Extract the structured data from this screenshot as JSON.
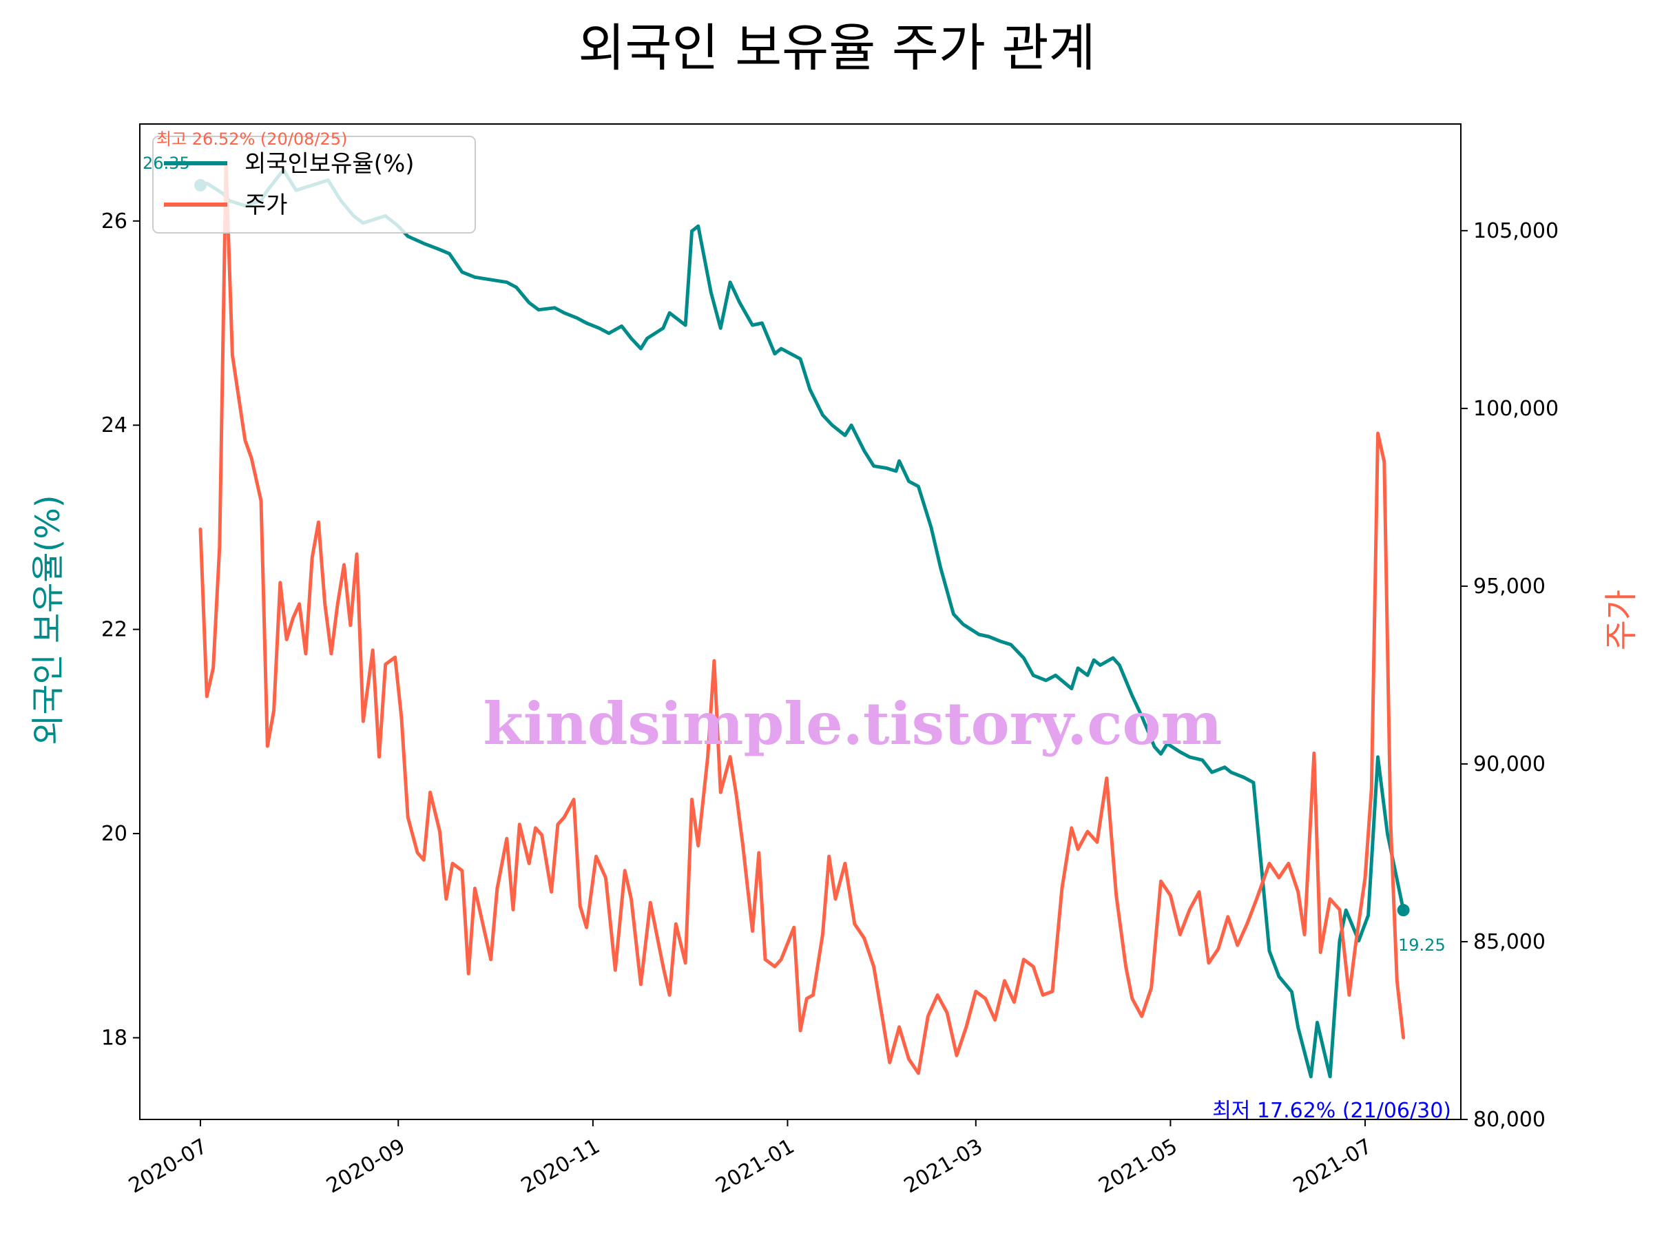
{
  "chart_data": {
    "type": "line",
    "title": "외국인 보유율 주가 관계",
    "ylabel_left": "외국인 보유율(%)",
    "ylabel_right": "주가",
    "x_tick_labels": [
      "2020-07",
      "2020-09",
      "2020-11",
      "2021-01",
      "2021-03",
      "2021-05",
      "2021-07"
    ],
    "left_y_ticks": [
      "18",
      "20",
      "22",
      "24",
      "26"
    ],
    "right_y_ticks": [
      "80,000",
      "85,000",
      "90,000",
      "95,000",
      "100,000",
      "105,000"
    ],
    "left_ylim": [
      17.2,
      26.95
    ],
    "right_ylim": [
      80000,
      108000
    ],
    "x_range": [
      "2020-06-12",
      "2021-07-31"
    ],
    "grid": false,
    "legend_position": "upper-left",
    "colors": {
      "foreign": "#008b8b",
      "price": "#ff6347",
      "low_annotation": "#0000ff",
      "watermark": "#e3a3ef"
    },
    "series": [
      {
        "name": "외국인보유율(%)",
        "axis": "left",
        "points": [
          [
            "2020-07-01",
            26.35
          ],
          [
            "2020-07-03",
            26.37
          ],
          [
            "2020-07-08",
            26.27
          ],
          [
            "2020-07-10",
            26.2
          ],
          [
            "2020-07-15",
            26.15
          ],
          [
            "2020-07-20",
            26.2
          ],
          [
            "2020-07-22",
            26.3
          ],
          [
            "2020-07-27",
            26.5
          ],
          [
            "2020-07-31",
            26.3
          ],
          [
            "2020-08-05",
            26.35
          ],
          [
            "2020-08-10",
            26.4
          ],
          [
            "2020-08-14",
            26.2
          ],
          [
            "2020-08-18",
            26.05
          ],
          [
            "2020-08-21",
            25.98
          ],
          [
            "2020-08-25",
            26.02
          ],
          [
            "2020-08-28",
            26.05
          ],
          [
            "2020-09-01",
            25.95
          ],
          [
            "2020-09-04",
            25.85
          ],
          [
            "2020-09-09",
            25.78
          ],
          [
            "2020-09-14",
            25.72
          ],
          [
            "2020-09-17",
            25.68
          ],
          [
            "2020-09-21",
            25.5
          ],
          [
            "2020-09-25",
            25.45
          ],
          [
            "2020-09-29",
            25.43
          ],
          [
            "2020-10-05",
            25.4
          ],
          [
            "2020-10-08",
            25.35
          ],
          [
            "2020-10-12",
            25.2
          ],
          [
            "2020-10-15",
            25.13
          ],
          [
            "2020-10-20",
            25.15
          ],
          [
            "2020-10-23",
            25.1
          ],
          [
            "2020-10-27",
            25.05
          ],
          [
            "2020-10-30",
            25.0
          ],
          [
            "2020-11-03",
            24.95
          ],
          [
            "2020-11-06",
            24.9
          ],
          [
            "2020-11-10",
            24.97
          ],
          [
            "2020-11-13",
            24.85
          ],
          [
            "2020-11-16",
            24.75
          ],
          [
            "2020-11-18",
            24.85
          ],
          [
            "2020-11-23",
            24.95
          ],
          [
            "2020-11-25",
            25.1
          ],
          [
            "2020-11-30",
            24.98
          ],
          [
            "2020-12-02",
            25.9
          ],
          [
            "2020-12-04",
            25.95
          ],
          [
            "2020-12-08",
            25.3
          ],
          [
            "2020-12-11",
            24.95
          ],
          [
            "2020-12-14",
            25.4
          ],
          [
            "2020-12-17",
            25.2
          ],
          [
            "2020-12-21",
            24.98
          ],
          [
            "2020-12-24",
            25.0
          ],
          [
            "2020-12-28",
            24.7
          ],
          [
            "2020-12-30",
            24.75
          ],
          [
            "2021-01-05",
            24.65
          ],
          [
            "2021-01-08",
            24.35
          ],
          [
            "2021-01-12",
            24.1
          ],
          [
            "2021-01-15",
            24.0
          ],
          [
            "2021-01-19",
            23.9
          ],
          [
            "2021-01-21",
            24.0
          ],
          [
            "2021-01-25",
            23.75
          ],
          [
            "2021-01-28",
            23.6
          ],
          [
            "2021-02-01",
            23.58
          ],
          [
            "2021-02-04",
            23.55
          ],
          [
            "2021-02-05",
            23.65
          ],
          [
            "2021-02-08",
            23.45
          ],
          [
            "2021-02-11",
            23.4
          ],
          [
            "2021-02-15",
            23.0
          ],
          [
            "2021-02-18",
            22.6
          ],
          [
            "2021-02-22",
            22.15
          ],
          [
            "2021-02-25",
            22.05
          ],
          [
            "2021-03-02",
            21.95
          ],
          [
            "2021-03-05",
            21.93
          ],
          [
            "2021-03-09",
            21.88
          ],
          [
            "2021-03-12",
            21.85
          ],
          [
            "2021-03-16",
            21.72
          ],
          [
            "2021-03-19",
            21.55
          ],
          [
            "2021-03-23",
            21.5
          ],
          [
            "2021-03-26",
            21.55
          ],
          [
            "2021-03-31",
            21.42
          ],
          [
            "2021-04-02",
            21.62
          ],
          [
            "2021-04-05",
            21.55
          ],
          [
            "2021-04-07",
            21.7
          ],
          [
            "2021-04-09",
            21.65
          ],
          [
            "2021-04-13",
            21.72
          ],
          [
            "2021-04-15",
            21.65
          ],
          [
            "2021-04-19",
            21.35
          ],
          [
            "2021-04-22",
            21.15
          ],
          [
            "2021-04-26",
            20.85
          ],
          [
            "2021-04-28",
            20.78
          ],
          [
            "2021-04-30",
            20.88
          ],
          [
            "2021-05-04",
            20.8
          ],
          [
            "2021-05-07",
            20.75
          ],
          [
            "2021-05-11",
            20.72
          ],
          [
            "2021-05-14",
            20.6
          ],
          [
            "2021-05-18",
            20.65
          ],
          [
            "2021-05-20",
            20.6
          ],
          [
            "2021-05-24",
            20.55
          ],
          [
            "2021-05-27",
            20.5
          ],
          [
            "2021-06-01",
            18.85
          ],
          [
            "2021-06-04",
            18.6
          ],
          [
            "2021-06-08",
            18.45
          ],
          [
            "2021-06-10",
            18.1
          ],
          [
            "2021-06-14",
            17.62
          ],
          [
            "2021-06-16",
            18.15
          ],
          [
            "2021-06-20",
            17.62
          ],
          [
            "2021-06-23",
            18.95
          ],
          [
            "2021-06-25",
            19.25
          ],
          [
            "2021-06-29",
            18.95
          ],
          [
            "2021-07-02",
            19.2
          ],
          [
            "2021-07-05",
            20.75
          ],
          [
            "2021-07-08",
            20.0
          ],
          [
            "2021-07-13",
            19.25
          ]
        ]
      },
      {
        "name": "주가",
        "axis": "right",
        "points": [
          [
            "2020-07-01",
            96.6
          ],
          [
            "2020-07-03",
            91.9
          ],
          [
            "2020-07-05",
            92.7
          ],
          [
            "2020-07-07",
            96.1
          ],
          [
            "2020-07-09",
            106.9
          ],
          [
            "2020-07-11",
            101.5
          ],
          [
            "2020-07-13",
            100.3
          ],
          [
            "2020-07-15",
            99.1
          ],
          [
            "2020-07-17",
            98.6
          ],
          [
            "2020-07-20",
            97.4
          ],
          [
            "2020-07-22",
            90.5
          ],
          [
            "2020-07-24",
            91.5
          ],
          [
            "2020-07-26",
            95.1
          ],
          [
            "2020-07-28",
            93.5
          ],
          [
            "2020-07-30",
            94.1
          ],
          [
            "2020-08-01",
            94.5
          ],
          [
            "2020-08-03",
            93.1
          ],
          [
            "2020-08-05",
            95.8
          ],
          [
            "2020-08-07",
            96.8
          ],
          [
            "2020-08-09",
            94.5
          ],
          [
            "2020-08-11",
            93.1
          ],
          [
            "2020-08-13",
            94.5
          ],
          [
            "2020-08-15",
            95.6
          ],
          [
            "2020-08-17",
            93.9
          ],
          [
            "2020-08-19",
            95.9
          ],
          [
            "2020-08-21",
            91.2
          ],
          [
            "2020-08-24",
            93.2
          ],
          [
            "2020-08-26",
            90.2
          ],
          [
            "2020-08-28",
            92.8
          ],
          [
            "2020-08-31",
            93.0
          ],
          [
            "2020-09-02",
            91.3
          ],
          [
            "2020-09-04",
            88.5
          ],
          [
            "2020-09-07",
            87.5
          ],
          [
            "2020-09-09",
            87.3
          ],
          [
            "2020-09-11",
            89.2
          ],
          [
            "2020-09-14",
            88.1
          ],
          [
            "2020-09-16",
            86.2
          ],
          [
            "2020-09-18",
            87.2
          ],
          [
            "2020-09-21",
            87.0
          ],
          [
            "2020-09-23",
            84.1
          ],
          [
            "2020-09-25",
            86.5
          ],
          [
            "2020-09-28",
            85.3
          ],
          [
            "2020-09-30",
            84.5
          ],
          [
            "2020-10-02",
            86.5
          ],
          [
            "2020-10-05",
            87.9
          ],
          [
            "2020-10-07",
            85.9
          ],
          [
            "2020-10-09",
            88.3
          ],
          [
            "2020-10-12",
            87.2
          ],
          [
            "2020-10-14",
            88.2
          ],
          [
            "2020-10-16",
            88.0
          ],
          [
            "2020-10-19",
            86.4
          ],
          [
            "2020-10-21",
            88.3
          ],
          [
            "2020-10-23",
            88.5
          ],
          [
            "2020-10-26",
            89.0
          ],
          [
            "2020-10-28",
            86.0
          ],
          [
            "2020-10-30",
            85.4
          ],
          [
            "2020-11-02",
            87.4
          ],
          [
            "2020-11-05",
            86.8
          ],
          [
            "2020-11-08",
            84.2
          ],
          [
            "2020-11-11",
            87.0
          ],
          [
            "2020-11-13",
            86.2
          ],
          [
            "2020-11-16",
            83.8
          ],
          [
            "2020-11-19",
            86.1
          ],
          [
            "2020-11-23",
            84.3
          ],
          [
            "2020-11-25",
            83.5
          ],
          [
            "2020-11-27",
            85.5
          ],
          [
            "2020-11-30",
            84.4
          ],
          [
            "2020-12-02",
            89.0
          ],
          [
            "2020-12-04",
            87.7
          ],
          [
            "2020-12-07",
            90.2
          ],
          [
            "2020-12-09",
            92.9
          ],
          [
            "2020-12-11",
            89.2
          ],
          [
            "2020-12-14",
            90.2
          ],
          [
            "2020-12-16",
            89.1
          ],
          [
            "2020-12-18",
            87.7
          ],
          [
            "2020-12-21",
            85.3
          ],
          [
            "2020-12-23",
            87.5
          ],
          [
            "2020-12-25",
            84.5
          ],
          [
            "2020-12-28",
            84.3
          ],
          [
            "2020-12-30",
            84.5
          ],
          [
            "2021-01-03",
            85.4
          ],
          [
            "2021-01-05",
            82.5
          ],
          [
            "2021-01-07",
            83.4
          ],
          [
            "2021-01-09",
            83.5
          ],
          [
            "2021-01-12",
            85.2
          ],
          [
            "2021-01-14",
            87.4
          ],
          [
            "2021-01-16",
            86.2
          ],
          [
            "2021-01-19",
            87.2
          ],
          [
            "2021-01-22",
            85.5
          ],
          [
            "2021-01-25",
            85.1
          ],
          [
            "2021-01-28",
            84.3
          ],
          [
            "2021-01-31",
            82.7
          ],
          [
            "2021-02-02",
            81.6
          ],
          [
            "2021-02-05",
            82.6
          ],
          [
            "2021-02-08",
            81.7
          ],
          [
            "2021-02-11",
            81.3
          ],
          [
            "2021-02-14",
            82.9
          ],
          [
            "2021-02-17",
            83.5
          ],
          [
            "2021-02-20",
            83.0
          ],
          [
            "2021-02-23",
            81.8
          ],
          [
            "2021-02-26",
            82.6
          ],
          [
            "2021-03-01",
            83.6
          ],
          [
            "2021-03-04",
            83.4
          ],
          [
            "2021-03-07",
            82.8
          ],
          [
            "2021-03-10",
            83.9
          ],
          [
            "2021-03-13",
            83.3
          ],
          [
            "2021-03-16",
            84.5
          ],
          [
            "2021-03-19",
            84.3
          ],
          [
            "2021-03-22",
            83.5
          ],
          [
            "2021-03-25",
            83.6
          ],
          [
            "2021-03-28",
            86.5
          ],
          [
            "2021-03-31",
            88.2
          ],
          [
            "2021-04-02",
            87.6
          ],
          [
            "2021-04-05",
            88.1
          ],
          [
            "2021-04-08",
            87.8
          ],
          [
            "2021-04-11",
            89.6
          ],
          [
            "2021-04-14",
            86.3
          ],
          [
            "2021-04-17",
            84.3
          ],
          [
            "2021-04-19",
            83.4
          ],
          [
            "2021-04-22",
            82.9
          ],
          [
            "2021-04-25",
            83.7
          ],
          [
            "2021-04-28",
            86.7
          ],
          [
            "2021-05-01",
            86.3
          ],
          [
            "2021-05-04",
            85.2
          ],
          [
            "2021-05-07",
            85.9
          ],
          [
            "2021-05-10",
            86.4
          ],
          [
            "2021-05-13",
            84.4
          ],
          [
            "2021-05-16",
            84.8
          ],
          [
            "2021-05-19",
            85.7
          ],
          [
            "2021-05-22",
            84.9
          ],
          [
            "2021-05-25",
            85.5
          ],
          [
            "2021-05-28",
            86.2
          ],
          [
            "2021-06-01",
            87.2
          ],
          [
            "2021-06-04",
            86.8
          ],
          [
            "2021-06-07",
            87.2
          ],
          [
            "2021-06-10",
            86.4
          ],
          [
            "2021-06-12",
            85.2
          ],
          [
            "2021-06-15",
            90.3
          ],
          [
            "2021-06-17",
            84.7
          ],
          [
            "2021-06-20",
            86.2
          ],
          [
            "2021-06-23",
            85.9
          ],
          [
            "2021-06-26",
            83.5
          ],
          [
            "2021-06-28",
            84.9
          ],
          [
            "2021-07-01",
            86.8
          ],
          [
            "2021-07-03",
            89.3
          ],
          [
            "2021-07-05",
            99.3
          ],
          [
            "2021-07-07",
            98.5
          ],
          [
            "2021-07-09",
            88.3
          ],
          [
            "2021-07-11",
            83.9
          ],
          [
            "2021-07-13",
            82.3
          ]
        ]
      }
    ],
    "annotations": {
      "high_price": "최고 26.52% (20/08/25)",
      "start_value": "26.35",
      "end_value": "19.25",
      "low_foreign": "최저 17.62% (21/06/30)"
    },
    "watermark": "kindsimple.tistory.com"
  }
}
